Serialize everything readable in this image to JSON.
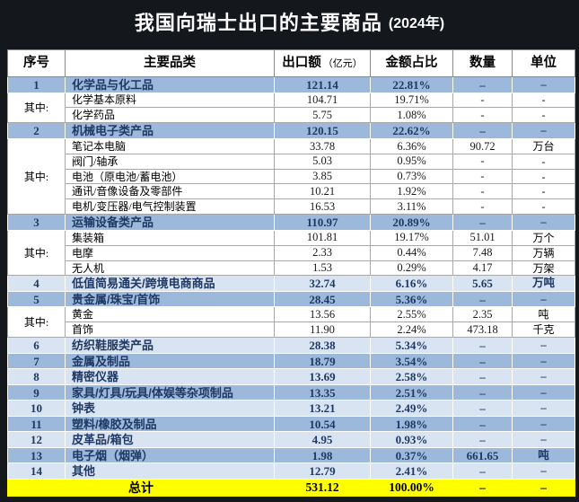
{
  "title": {
    "main": "我国向瑞士出口的主要商品",
    "year": "(2024年)"
  },
  "colors": {
    "title_bg": "#14171C",
    "title_text": "#FFFFFF",
    "medium_blue": "#9CB9DC",
    "light_blue": "#D9E4F2",
    "row_white": "#FFFFFF",
    "total_yellow": "#FFFF00",
    "navy_text": "#1F3864",
    "grid_line": "#A8A8A8"
  },
  "chart_data": {
    "type": "table",
    "title": "我国向瑞士出口的主要商品 (2024年)",
    "columns": [
      {
        "label": "序号"
      },
      {
        "label": "主要品类"
      },
      {
        "label": "出口额",
        "sublabel": "（亿元）"
      },
      {
        "label": "金额占比"
      },
      {
        "label": "数量"
      },
      {
        "label": "单位"
      }
    ],
    "rows": [
      {
        "type": "cat",
        "shade": "med",
        "no": "1",
        "name": "化学品与化工品",
        "export": "121.14",
        "share": "22.81%",
        "qty": "–",
        "unit": "–"
      },
      {
        "type": "sub",
        "group": {
          "label": "其中:",
          "span": 2
        },
        "name": "化学基本原料",
        "export": "104.71",
        "share": "19.71%",
        "qty": "-",
        "unit": "-"
      },
      {
        "type": "sub",
        "name": "化学药品",
        "export": "5.75",
        "share": "1.08%",
        "qty": "-",
        "unit": "-"
      },
      {
        "type": "cat",
        "shade": "med",
        "no": "2",
        "name": "机械电子类产品",
        "export": "120.15",
        "share": "22.62%",
        "qty": "–",
        "unit": "–"
      },
      {
        "type": "sub",
        "group": {
          "label": "其中:",
          "span": 5
        },
        "name": "笔记本电脑",
        "export": "33.78",
        "share": "6.36%",
        "qty": "90.72",
        "unit": "万台"
      },
      {
        "type": "sub",
        "name": "阀门/轴承",
        "export": "5.03",
        "share": "0.95%",
        "qty": "-",
        "unit": "-"
      },
      {
        "type": "sub",
        "name": "电池（原电池/蓄电池）",
        "export": "3.85",
        "share": "0.73%",
        "qty": "-",
        "unit": "-"
      },
      {
        "type": "sub",
        "name": "通讯/音像设备及零部件",
        "export": "10.21",
        "share": "1.92%",
        "qty": "-",
        "unit": "-"
      },
      {
        "type": "sub",
        "name": "电机/变压器/电气控制装置",
        "export": "16.53",
        "share": "3.11%",
        "qty": "-",
        "unit": "-"
      },
      {
        "type": "cat",
        "shade": "med",
        "no": "3",
        "name": "运输设备类产品",
        "export": "110.97",
        "share": "20.89%",
        "qty": "–",
        "unit": "–"
      },
      {
        "type": "sub",
        "group": {
          "label": "其中:",
          "span": 3
        },
        "name": "集装箱",
        "export": "101.81",
        "share": "19.17%",
        "qty": "51.01",
        "unit": "万个"
      },
      {
        "type": "sub",
        "name": "电摩",
        "export": "2.33",
        "share": "0.44%",
        "qty": "7.48",
        "unit": "万辆"
      },
      {
        "type": "sub",
        "name": "无人机",
        "export": "1.53",
        "share": "0.29%",
        "qty": "4.17",
        "unit": "万架"
      },
      {
        "type": "cat",
        "shade": "light",
        "no": "4",
        "name": "低值简易通关/跨境电商商品",
        "export": "32.74",
        "share": "6.16%",
        "qty": "5.65",
        "unit": "万吨"
      },
      {
        "type": "cat",
        "shade": "med",
        "no": "5",
        "name": "贵金属/珠宝/首饰",
        "export": "28.45",
        "share": "5.36%",
        "qty": "–",
        "unit": "–"
      },
      {
        "type": "sub",
        "group": {
          "label": "其中:",
          "span": 2
        },
        "name": "黄金",
        "export": "13.56",
        "share": "2.55%",
        "qty": "2.35",
        "unit": "吨"
      },
      {
        "type": "sub",
        "name": "首饰",
        "export": "11.90",
        "share": "2.24%",
        "qty": "473.18",
        "unit": "千克"
      },
      {
        "type": "cat",
        "shade": "light",
        "no": "6",
        "name": "纺织鞋服类产品",
        "export": "28.38",
        "share": "5.34%",
        "qty": "–",
        "unit": "–"
      },
      {
        "type": "cat",
        "shade": "med",
        "no": "7",
        "name": "金属及制品",
        "export": "18.79",
        "share": "3.54%",
        "qty": "–",
        "unit": "–"
      },
      {
        "type": "cat",
        "shade": "light",
        "no": "8",
        "name": "精密仪器",
        "export": "13.69",
        "share": "2.58%",
        "qty": "–",
        "unit": "–"
      },
      {
        "type": "cat",
        "shade": "med",
        "no": "9",
        "name": "家具/灯具/玩具/体娱等杂项制品",
        "export": "13.35",
        "share": "2.51%",
        "qty": "–",
        "unit": "–"
      },
      {
        "type": "cat",
        "shade": "light",
        "no": "10",
        "name": "钟表",
        "export": "13.21",
        "share": "2.49%",
        "qty": "–",
        "unit": "–"
      },
      {
        "type": "cat",
        "shade": "med",
        "no": "11",
        "name": "塑料/橡胶及制品",
        "export": "10.54",
        "share": "1.98%",
        "qty": "–",
        "unit": "–"
      },
      {
        "type": "cat",
        "shade": "light",
        "no": "12",
        "name": "皮革品/箱包",
        "export": "4.95",
        "share": "0.93%",
        "qty": "–",
        "unit": "–"
      },
      {
        "type": "cat",
        "shade": "med",
        "no": "13",
        "name": "电子烟（烟弹）",
        "export": "1.98",
        "share": "0.37%",
        "qty": "661.65",
        "unit": "吨"
      },
      {
        "type": "cat",
        "shade": "light",
        "no": "14",
        "name": "其他",
        "export": "12.79",
        "share": "2.41%",
        "qty": "–",
        "unit": "–"
      },
      {
        "type": "total",
        "label": "总计",
        "export": "531.12",
        "share": "100.00%",
        "qty": "–",
        "unit": "–"
      }
    ]
  }
}
